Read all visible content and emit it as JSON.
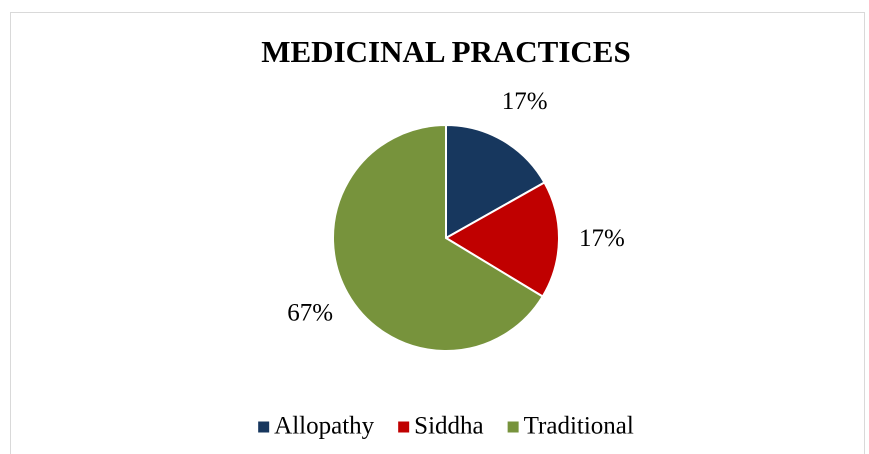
{
  "chart_data": {
    "type": "pie",
    "title": "MEDICINAL PRACTICES",
    "categories": [
      "Allopathy",
      "Siddha",
      "Traditional"
    ],
    "values": [
      17,
      17,
      67
    ],
    "value_labels": [
      "17%",
      "17%",
      "67%"
    ],
    "colors": [
      "#17375e",
      "#c00000",
      "#77933c"
    ],
    "legend": "bottom"
  }
}
